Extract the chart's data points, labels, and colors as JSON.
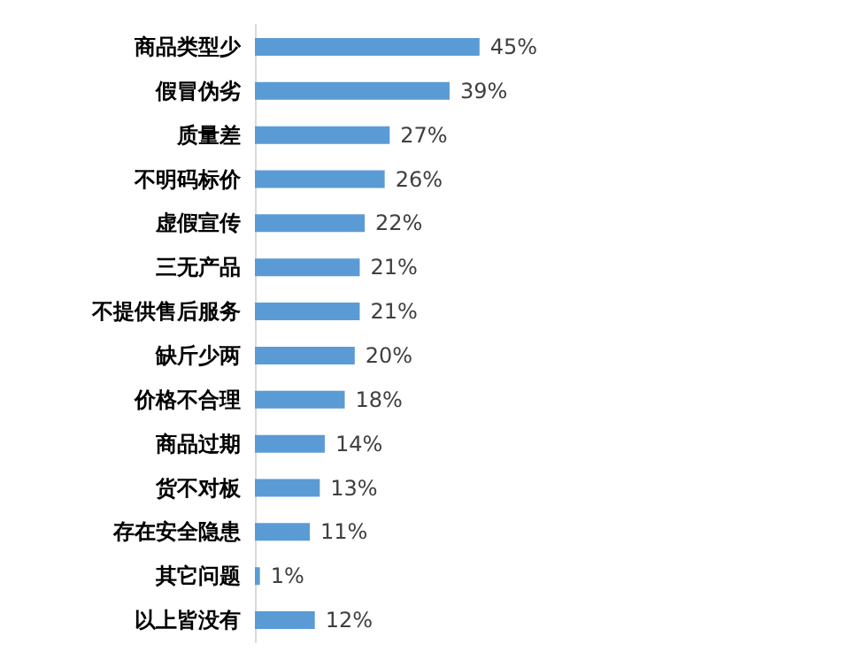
{
  "chart_data": {
    "type": "bar",
    "orientation": "horizontal",
    "categories": [
      "商品类型少",
      "假冒伪劣",
      "质量差",
      "不明码标价",
      "虚假宣传",
      "三无产品",
      "不提供售后服务",
      "缺斤少两",
      "价格不合理",
      "商品过期",
      "货不对板",
      "存在安全隐患",
      "其它问题",
      "以上皆没有"
    ],
    "values": [
      45,
      39,
      27,
      26,
      22,
      21,
      21,
      20,
      18,
      14,
      13,
      11,
      1,
      12
    ],
    "value_labels": [
      "45%",
      "39%",
      "27%",
      "26%",
      "22%",
      "21%",
      "21%",
      "20%",
      "18%",
      "14%",
      "13%",
      "11%",
      "1%",
      "12%"
    ],
    "color": "#5b9bd5"
  }
}
